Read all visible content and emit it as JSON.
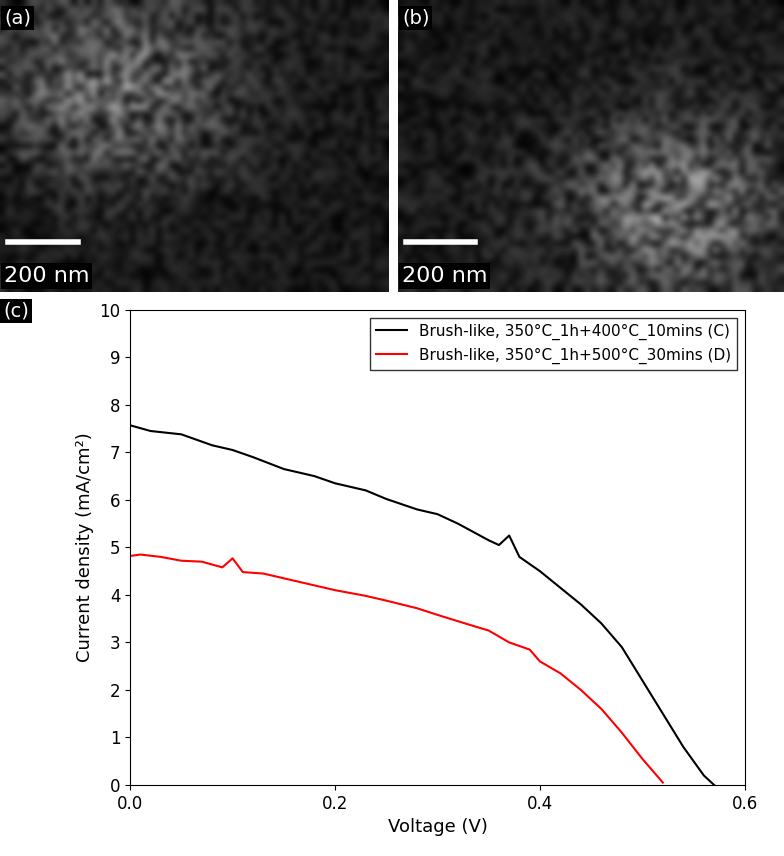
{
  "panels": [
    {
      "label": "(a)",
      "scale_bar": "200 nm"
    },
    {
      "label": "(b)",
      "scale_bar": "200 nm"
    }
  ],
  "chart_data": {
    "type": "line",
    "panel_label": "(c)",
    "x_label": "Voltage (V)",
    "y_label": "Current density (mA/cm²)",
    "xlim": [
      0.0,
      0.6
    ],
    "xticks": [
      0.0,
      0.2,
      0.4,
      0.6
    ],
    "ylim": [
      0,
      10
    ],
    "yticks": [
      0,
      1,
      2,
      3,
      4,
      5,
      6,
      7,
      8,
      9,
      10
    ],
    "legend": "upper right",
    "series": [
      {
        "name": "Brush-like, 350°C_1h+400°C_10mins (C)",
        "color": "#000000",
        "x": [
          0.0,
          0.02,
          0.05,
          0.08,
          0.1,
          0.12,
          0.15,
          0.18,
          0.2,
          0.23,
          0.25,
          0.28,
          0.3,
          0.32,
          0.35,
          0.36,
          0.37,
          0.38,
          0.4,
          0.42,
          0.44,
          0.46,
          0.48,
          0.5,
          0.52,
          0.54,
          0.56,
          0.57
        ],
        "values": [
          7.57,
          7.45,
          7.38,
          7.15,
          7.05,
          6.9,
          6.65,
          6.5,
          6.35,
          6.2,
          6.02,
          5.8,
          5.7,
          5.5,
          5.15,
          5.05,
          5.25,
          4.8,
          4.5,
          4.15,
          3.8,
          3.4,
          2.9,
          2.2,
          1.5,
          0.8,
          0.2,
          0.0
        ]
      },
      {
        "name": "Brush-like, 350°C_1h+500°C_30mins (D)",
        "color": "#ff0000",
        "x": [
          0.0,
          0.01,
          0.03,
          0.05,
          0.07,
          0.09,
          0.1,
          0.11,
          0.13,
          0.15,
          0.17,
          0.2,
          0.23,
          0.25,
          0.28,
          0.3,
          0.33,
          0.35,
          0.37,
          0.39,
          0.4,
          0.42,
          0.44,
          0.46,
          0.48,
          0.5,
          0.51,
          0.52
        ],
        "values": [
          4.82,
          4.85,
          4.8,
          4.72,
          4.7,
          4.58,
          4.77,
          4.48,
          4.45,
          4.35,
          4.25,
          4.1,
          3.98,
          3.88,
          3.72,
          3.58,
          3.38,
          3.25,
          3.0,
          2.85,
          2.6,
          2.35,
          2.0,
          1.6,
          1.1,
          0.55,
          0.3,
          0.05
        ]
      }
    ]
  }
}
